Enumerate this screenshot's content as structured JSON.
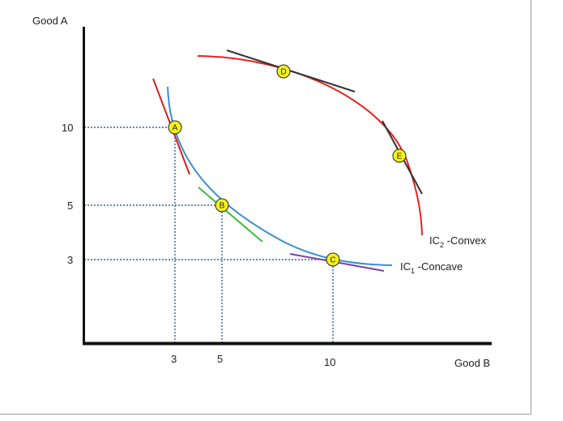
{
  "axes": {
    "y_title": "Good A",
    "x_title": "Good B",
    "y_ticks": [
      "10",
      "5",
      "3"
    ],
    "x_ticks": [
      "3",
      "5",
      "10"
    ]
  },
  "curves": {
    "ic1_main": "IC",
    "ic1_sub": "1",
    "ic1_suffix": " -Concave",
    "ic2_main": "IC",
    "ic2_sub": "2",
    "ic2_suffix": " -Convex"
  },
  "points": [
    "A",
    "B",
    "C",
    "D",
    "E"
  ],
  "colors": {
    "ic1": "#3a8fd0",
    "ic2": "#e8201f",
    "tangent_a": "#d21f1f",
    "tangent_b": "#3cb83c",
    "tangent_c": "#7a3fb0",
    "tangent_de": "#333333",
    "point_fill": "#f5f21a",
    "guide": "#2f5fb0"
  }
}
